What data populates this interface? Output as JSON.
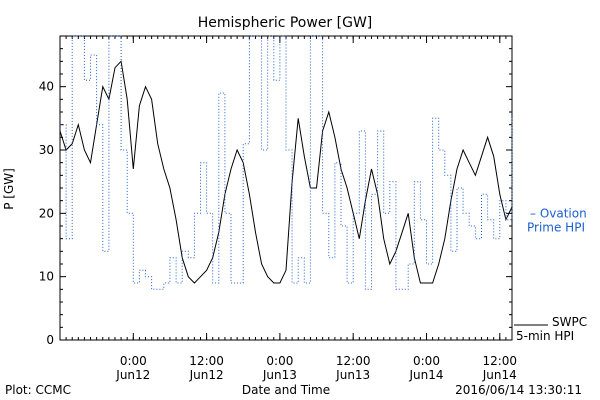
{
  "chart_data": {
    "type": "line",
    "title": "Hemispheric Power [GW]",
    "xlabel": "Date and Time",
    "ylabel": "P [GW]",
    "xlim": [
      "2016-06-11 12:00",
      "2016-06-14 14:00"
    ],
    "ylim": [
      0,
      48
    ],
    "grid": false,
    "y_ticks": [
      0,
      10,
      20,
      30,
      40
    ],
    "x_ticks": [
      {
        "time": "2016-06-12 00:00",
        "label1": "0:00",
        "label2": "Jun12"
      },
      {
        "time": "2016-06-12 12:00",
        "label1": "12:00",
        "label2": "Jun12"
      },
      {
        "time": "2016-06-13 00:00",
        "label1": "0:00",
        "label2": "Jun13"
      },
      {
        "time": "2016-06-13 12:00",
        "label1": "12:00",
        "label2": "Jun13"
      },
      {
        "time": "2016-06-14 00:00",
        "label1": "0:00",
        "label2": "Jun14"
      },
      {
        "time": "2016-06-14 12:00",
        "label1": "12:00",
        "label2": "Jun14"
      }
    ],
    "series": [
      {
        "name": "SWPC 5-min HPI",
        "legend_lines": [
          "SWPC",
          "5-min HPI"
        ],
        "style": "solid",
        "color": "#000000",
        "points": [
          [
            "2016-06-11 12:00",
            33
          ],
          [
            "2016-06-11 13:00",
            30
          ],
          [
            "2016-06-11 14:00",
            31
          ],
          [
            "2016-06-11 15:00",
            34
          ],
          [
            "2016-06-11 16:00",
            30
          ],
          [
            "2016-06-11 17:00",
            28
          ],
          [
            "2016-06-11 18:00",
            34
          ],
          [
            "2016-06-11 19:00",
            40
          ],
          [
            "2016-06-11 20:00",
            38
          ],
          [
            "2016-06-11 21:00",
            43
          ],
          [
            "2016-06-11 22:00",
            44
          ],
          [
            "2016-06-11 23:00",
            38
          ],
          [
            "2016-06-12 00:00",
            27
          ],
          [
            "2016-06-12 01:00",
            37
          ],
          [
            "2016-06-12 02:00",
            40
          ],
          [
            "2016-06-12 03:00",
            38
          ],
          [
            "2016-06-12 04:00",
            31
          ],
          [
            "2016-06-12 05:00",
            27
          ],
          [
            "2016-06-12 06:00",
            24
          ],
          [
            "2016-06-12 07:00",
            19
          ],
          [
            "2016-06-12 08:00",
            13
          ],
          [
            "2016-06-12 09:00",
            10
          ],
          [
            "2016-06-12 10:00",
            9
          ],
          [
            "2016-06-12 11:00",
            10
          ],
          [
            "2016-06-12 12:00",
            11
          ],
          [
            "2016-06-12 13:00",
            13
          ],
          [
            "2016-06-12 14:00",
            17
          ],
          [
            "2016-06-12 15:00",
            23
          ],
          [
            "2016-06-12 16:00",
            27
          ],
          [
            "2016-06-12 17:00",
            30
          ],
          [
            "2016-06-12 18:00",
            28
          ],
          [
            "2016-06-12 19:00",
            23
          ],
          [
            "2016-06-12 20:00",
            17
          ],
          [
            "2016-06-12 21:00",
            12
          ],
          [
            "2016-06-12 22:00",
            10
          ],
          [
            "2016-06-12 23:00",
            9
          ],
          [
            "2016-06-13 00:00",
            9
          ],
          [
            "2016-06-13 01:00",
            11
          ],
          [
            "2016-06-13 02:00",
            25
          ],
          [
            "2016-06-13 03:00",
            35
          ],
          [
            "2016-06-13 04:00",
            29
          ],
          [
            "2016-06-13 05:00",
            24
          ],
          [
            "2016-06-13 06:00",
            24
          ],
          [
            "2016-06-13 07:00",
            33
          ],
          [
            "2016-06-13 08:00",
            36
          ],
          [
            "2016-06-13 09:00",
            32
          ],
          [
            "2016-06-13 10:00",
            27
          ],
          [
            "2016-06-13 11:00",
            24
          ],
          [
            "2016-06-13 12:00",
            20
          ],
          [
            "2016-06-13 13:00",
            16
          ],
          [
            "2016-06-13 14:00",
            22
          ],
          [
            "2016-06-13 15:00",
            27
          ],
          [
            "2016-06-13 16:00",
            23
          ],
          [
            "2016-06-13 17:00",
            16
          ],
          [
            "2016-06-13 18:00",
            12
          ],
          [
            "2016-06-13 19:00",
            14
          ],
          [
            "2016-06-13 20:00",
            17
          ],
          [
            "2016-06-13 21:00",
            20
          ],
          [
            "2016-06-13 22:00",
            13
          ],
          [
            "2016-06-13 23:00",
            9
          ],
          [
            "2016-06-14 00:00",
            9
          ],
          [
            "2016-06-14 01:00",
            9
          ],
          [
            "2016-06-14 02:00",
            12
          ],
          [
            "2016-06-14 03:00",
            16
          ],
          [
            "2016-06-14 04:00",
            22
          ],
          [
            "2016-06-14 05:00",
            27
          ],
          [
            "2016-06-14 06:00",
            30
          ],
          [
            "2016-06-14 07:00",
            28
          ],
          [
            "2016-06-14 08:00",
            26
          ],
          [
            "2016-06-14 09:00",
            29
          ],
          [
            "2016-06-14 10:00",
            32
          ],
          [
            "2016-06-14 11:00",
            29
          ],
          [
            "2016-06-14 12:00",
            23
          ],
          [
            "2016-06-14 13:00",
            19
          ],
          [
            "2016-06-14 14:00",
            21
          ]
        ]
      },
      {
        "name": "Ovation Prime HPI",
        "legend_lines": [
          "– Ovation",
          "Prime HPI"
        ],
        "style": "dotted",
        "color": "#1a5fd0",
        "points": [
          [
            "2016-06-11 12:00",
            34
          ],
          [
            "2016-06-11 13:00",
            16
          ],
          [
            "2016-06-11 14:00",
            48
          ],
          [
            "2016-06-11 15:00",
            48
          ],
          [
            "2016-06-11 16:00",
            41
          ],
          [
            "2016-06-11 17:00",
            45
          ],
          [
            "2016-06-11 18:00",
            34
          ],
          [
            "2016-06-11 19:00",
            14
          ],
          [
            "2016-06-11 20:00",
            48
          ],
          [
            "2016-06-11 21:00",
            48
          ],
          [
            "2016-06-11 22:00",
            30
          ],
          [
            "2016-06-11 23:00",
            20
          ],
          [
            "2016-06-12 00:00",
            9
          ],
          [
            "2016-06-12 01:00",
            11
          ],
          [
            "2016-06-12 02:00",
            10
          ],
          [
            "2016-06-12 03:00",
            8
          ],
          [
            "2016-06-12 04:00",
            8
          ],
          [
            "2016-06-12 05:00",
            9
          ],
          [
            "2016-06-12 06:00",
            13
          ],
          [
            "2016-06-12 07:00",
            9
          ],
          [
            "2016-06-12 08:00",
            14
          ],
          [
            "2016-06-12 09:00",
            13
          ],
          [
            "2016-06-12 10:00",
            20
          ],
          [
            "2016-06-12 11:00",
            28
          ],
          [
            "2016-06-12 12:00",
            20
          ],
          [
            "2016-06-12 13:00",
            9
          ],
          [
            "2016-06-12 14:00",
            39
          ],
          [
            "2016-06-12 15:00",
            20
          ],
          [
            "2016-06-12 16:00",
            9
          ],
          [
            "2016-06-12 17:00",
            9
          ],
          [
            "2016-06-12 18:00",
            31
          ],
          [
            "2016-06-12 19:00",
            48
          ],
          [
            "2016-06-12 20:00",
            48
          ],
          [
            "2016-06-12 21:00",
            30
          ],
          [
            "2016-06-12 22:00",
            48
          ],
          [
            "2016-06-12 23:00",
            41
          ],
          [
            "2016-06-13 00:00",
            48
          ],
          [
            "2016-06-13 01:00",
            30
          ],
          [
            "2016-06-13 02:00",
            9
          ],
          [
            "2016-06-13 03:00",
            13
          ],
          [
            "2016-06-13 04:00",
            9
          ],
          [
            "2016-06-13 05:00",
            48
          ],
          [
            "2016-06-13 06:00",
            48
          ],
          [
            "2016-06-13 07:00",
            20
          ],
          [
            "2016-06-13 08:00",
            13
          ],
          [
            "2016-06-13 09:00",
            28
          ],
          [
            "2016-06-13 10:00",
            18
          ],
          [
            "2016-06-13 11:00",
            9
          ],
          [
            "2016-06-13 12:00",
            20
          ],
          [
            "2016-06-13 13:00",
            33
          ],
          [
            "2016-06-13 14:00",
            8
          ],
          [
            "2016-06-13 15:00",
            23
          ],
          [
            "2016-06-13 16:00",
            33
          ],
          [
            "2016-06-13 17:00",
            20
          ],
          [
            "2016-06-13 18:00",
            25
          ],
          [
            "2016-06-13 19:00",
            8
          ],
          [
            "2016-06-13 20:00",
            8
          ],
          [
            "2016-06-13 21:00",
            12
          ],
          [
            "2016-06-13 22:00",
            25
          ],
          [
            "2016-06-13 23:00",
            19
          ],
          [
            "2016-06-14 00:00",
            12
          ],
          [
            "2016-06-14 01:00",
            35
          ],
          [
            "2016-06-14 02:00",
            30
          ],
          [
            "2016-06-14 03:00",
            26
          ],
          [
            "2016-06-14 04:00",
            14
          ],
          [
            "2016-06-14 05:00",
            24
          ],
          [
            "2016-06-14 06:00",
            20
          ],
          [
            "2016-06-14 07:00",
            18
          ],
          [
            "2016-06-14 08:00",
            16
          ],
          [
            "2016-06-14 09:00",
            23
          ],
          [
            "2016-06-14 10:00",
            19
          ],
          [
            "2016-06-14 11:00",
            16
          ],
          [
            "2016-06-14 12:00",
            22
          ],
          [
            "2016-06-14 13:00",
            19
          ],
          [
            "2016-06-14 14:00",
            35
          ]
        ]
      }
    ],
    "legend_placement": "right"
  },
  "footer": {
    "plot_credit": "Plot: CCMC",
    "timestamp": "2016/06/14 13:30:11"
  }
}
